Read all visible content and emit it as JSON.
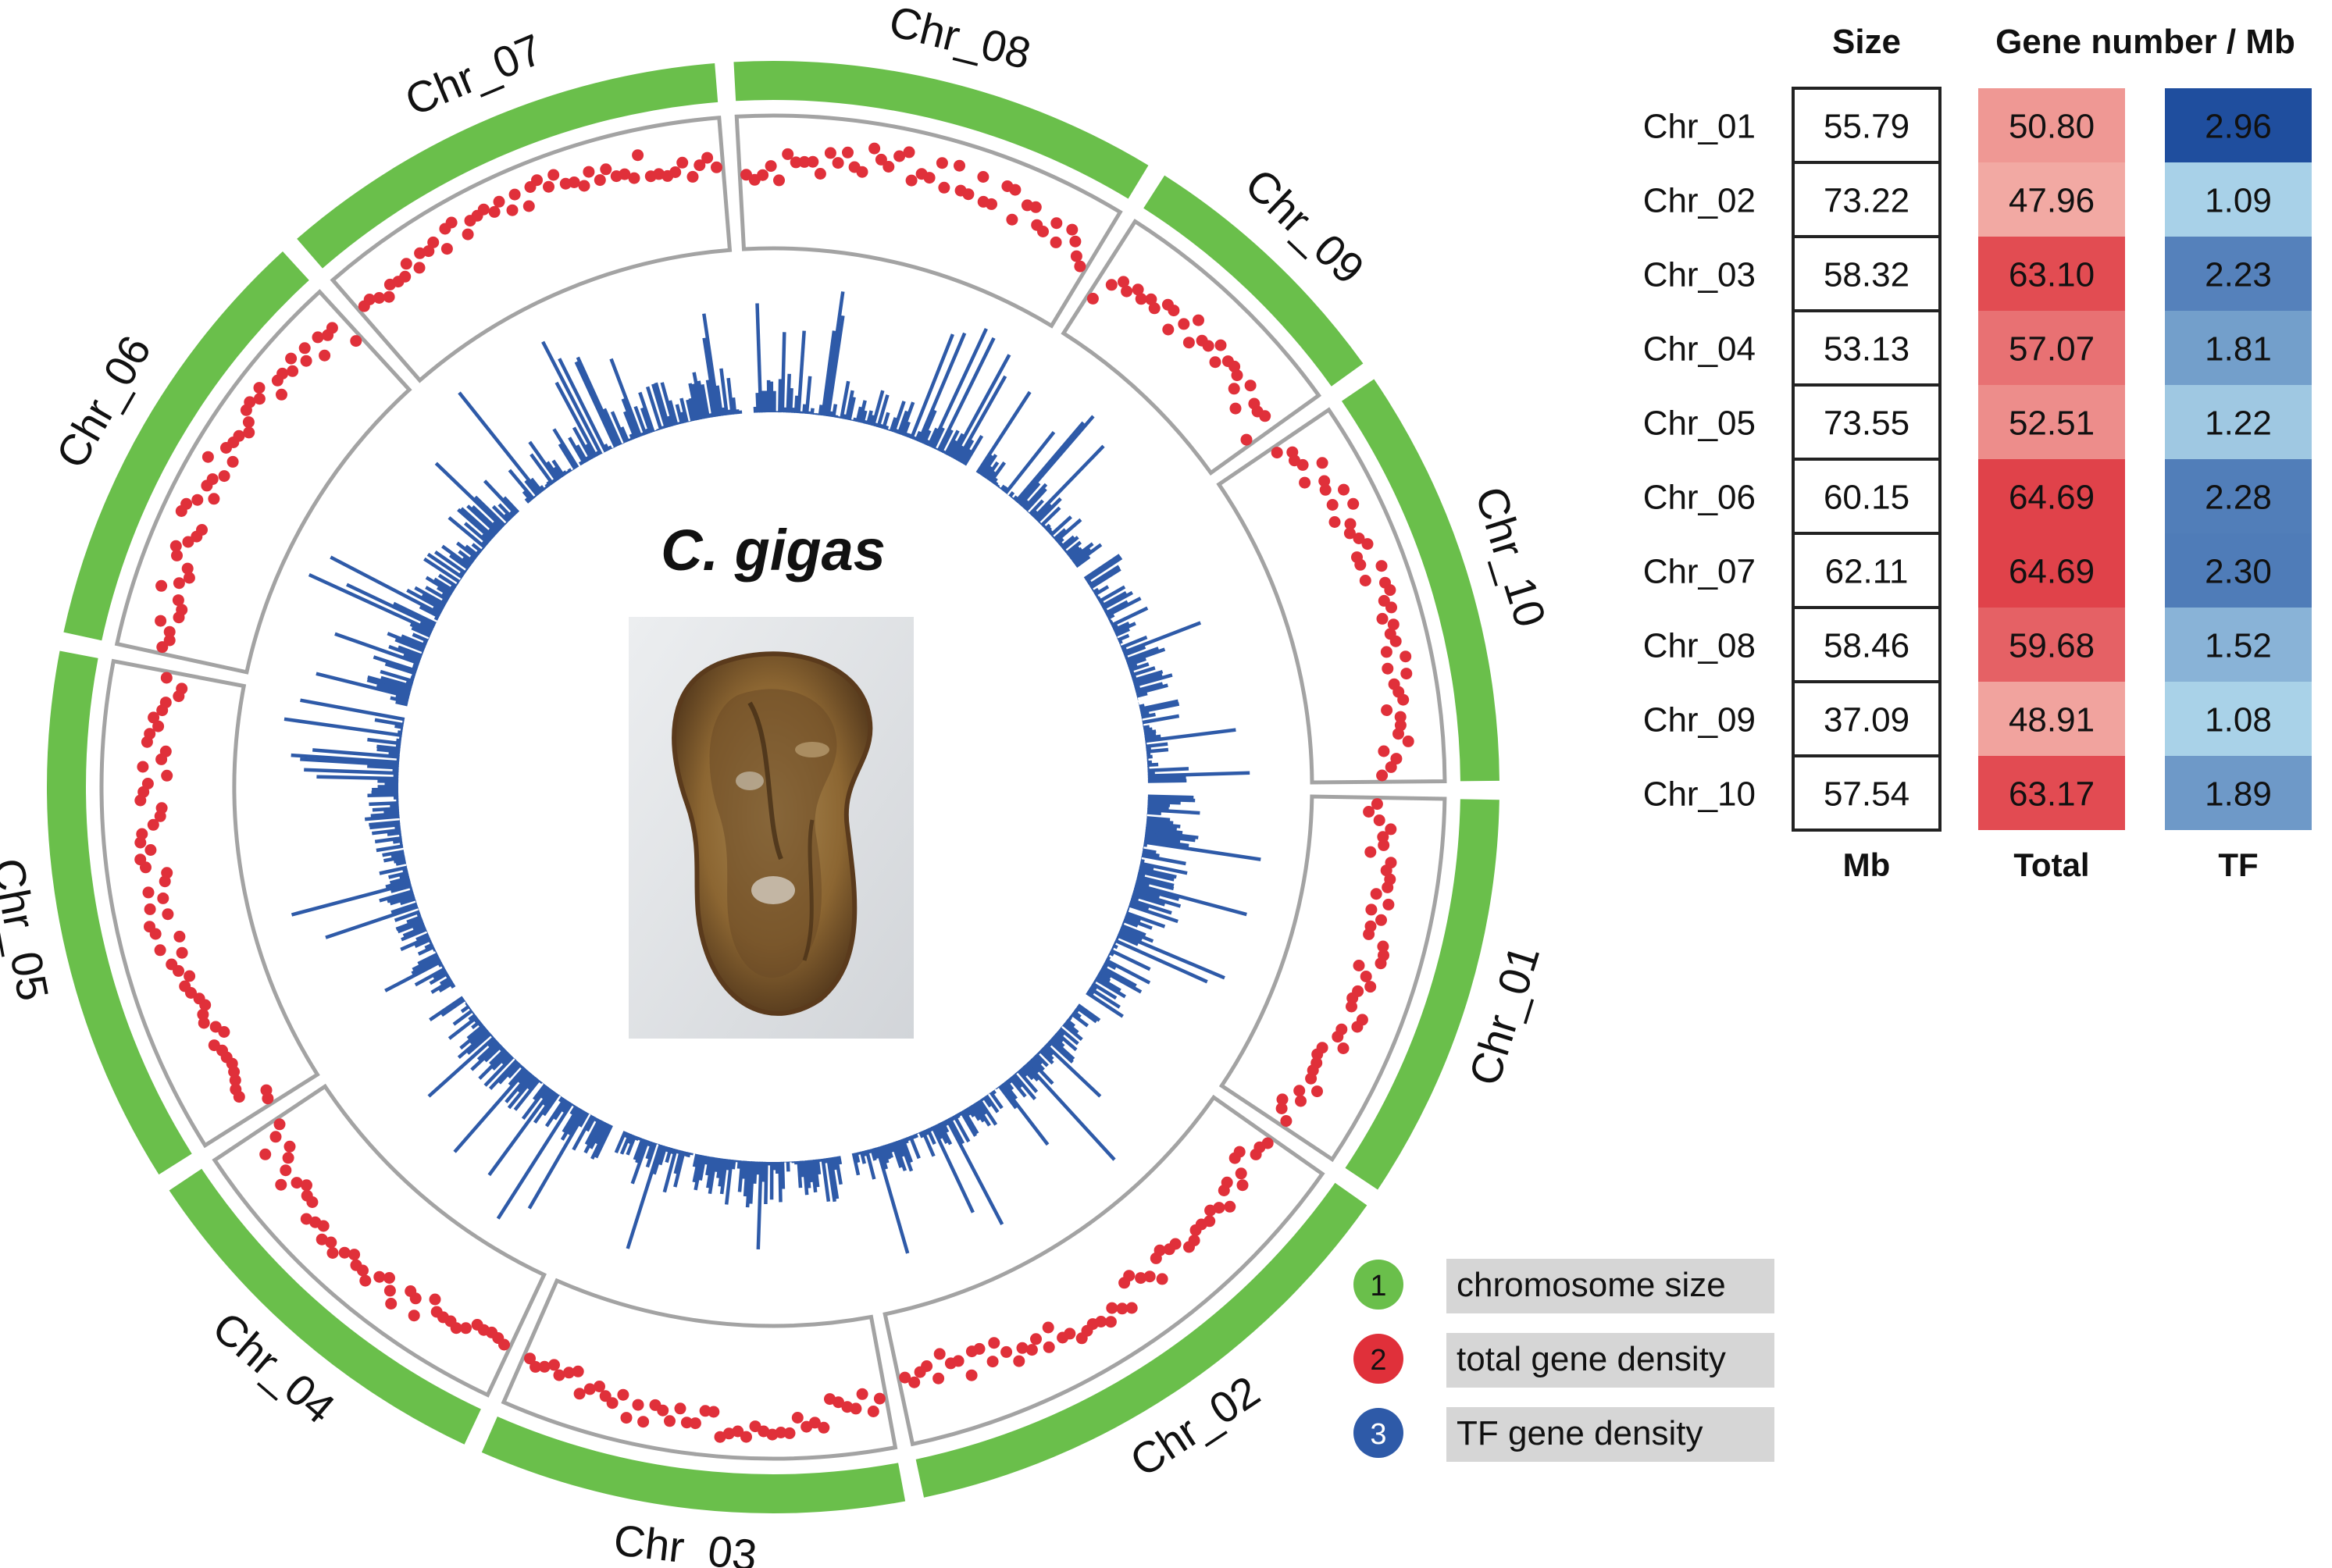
{
  "chart_data": {
    "type": "circos",
    "center_title": "C. gigas",
    "center_image": "oyster-photo",
    "chromosomes": [
      "Chr_01",
      "Chr_02",
      "Chr_03",
      "Chr_04",
      "Chr_05",
      "Chr_06",
      "Chr_07",
      "Chr_08",
      "Chr_09",
      "Chr_10"
    ],
    "tracks": [
      {
        "id": 1,
        "name": "chromosome size",
        "color": "#6abf4b"
      },
      {
        "id": 2,
        "name": "total gene density",
        "color": "#e0303a"
      },
      {
        "id": 3,
        "name": "TF gene density",
        "color": "#2e5aa8"
      }
    ],
    "table": {
      "header_size": "Size",
      "header_gene": "Gene number / Mb",
      "footer_size": "Mb",
      "footer_total": "Total",
      "footer_tf": "TF",
      "rows": [
        {
          "chr": "Chr_01",
          "size": "55.79",
          "total": "50.80",
          "tf": "2.96"
        },
        {
          "chr": "Chr_02",
          "size": "73.22",
          "total": "47.96",
          "tf": "1.09"
        },
        {
          "chr": "Chr_03",
          "size": "58.32",
          "total": "63.10",
          "tf": "2.23"
        },
        {
          "chr": "Chr_04",
          "size": "53.13",
          "total": "57.07",
          "tf": "1.81"
        },
        {
          "chr": "Chr_05",
          "size": "73.55",
          "total": "52.51",
          "tf": "1.22"
        },
        {
          "chr": "Chr_06",
          "size": "60.15",
          "total": "64.69",
          "tf": "2.28"
        },
        {
          "chr": "Chr_07",
          "size": "62.11",
          "total": "64.69",
          "tf": "2.30"
        },
        {
          "chr": "Chr_08",
          "size": "58.46",
          "total": "59.68",
          "tf": "1.52"
        },
        {
          "chr": "Chr_09",
          "size": "37.09",
          "total": "48.91",
          "tf": "1.08"
        },
        {
          "chr": "Chr_10",
          "size": "57.54",
          "total": "63.17",
          "tf": "1.89"
        }
      ]
    }
  },
  "legend": {
    "items": [
      {
        "num": "1",
        "label": "chromosome size",
        "color": "#6abf4b"
      },
      {
        "num": "2",
        "label": "total gene density",
        "color": "#e0303a"
      },
      {
        "num": "3",
        "label": "TF gene density",
        "color": "#2e5aa8"
      }
    ]
  }
}
